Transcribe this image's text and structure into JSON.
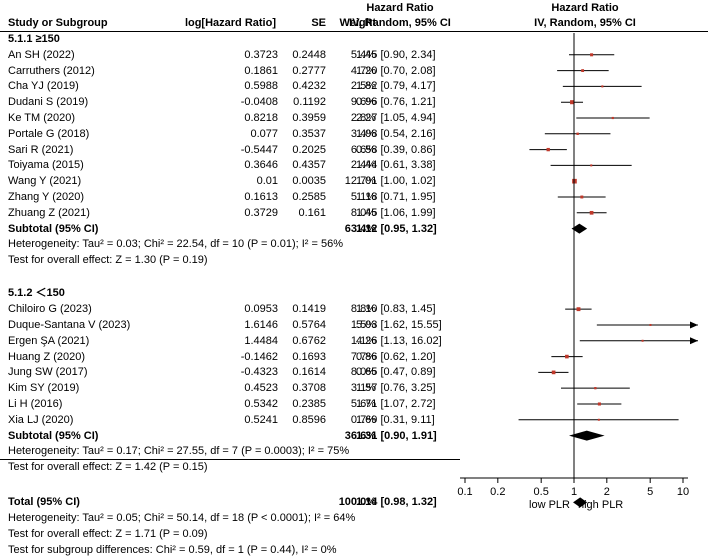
{
  "headers": {
    "study": "Study or Subgroup",
    "log_hr": "log[Hazard Ratio]",
    "se": "SE",
    "weight": "Weight",
    "hr_top": "Hazard Ratio",
    "hr_method": "IV, Random, 95% CI",
    "plot_top": "Hazard Ratio",
    "plot_method": "IV, Random, 95% CI"
  },
  "chart_data": {
    "type": "forest",
    "x_scale": "log",
    "xlim": [
      0.1,
      10
    ],
    "x_ticks": [
      "0.1",
      "0.2",
      "0.5",
      "1",
      "2",
      "5",
      "10"
    ],
    "x_tick_values": [
      0.1,
      0.2,
      0.5,
      1,
      2,
      5,
      10
    ],
    "favours_left": "low PLR",
    "favours_right": "high PLR",
    "subgroups": [
      {
        "title": "5.1.1 ≥150",
        "studies": [
          {
            "name": "An SH (2022)",
            "log_hr": "0.3723",
            "se": "0.2448",
            "weight": "5.4%",
            "ci_text": "1.45 [0.90, 2.34]",
            "hr": 1.45,
            "lo": 0.9,
            "hi": 2.34,
            "w": 5.4
          },
          {
            "name": "Carruthers (2012)",
            "log_hr": "0.1861",
            "se": "0.2777",
            "weight": "4.7%",
            "ci_text": "1.20 [0.70, 2.08]",
            "hr": 1.2,
            "lo": 0.7,
            "hi": 2.08,
            "w": 4.7
          },
          {
            "name": "Cha YJ (2019)",
            "log_hr": "0.5988",
            "se": "0.4232",
            "weight": "2.5%",
            "ci_text": "1.82 [0.79, 4.17]",
            "hr": 1.82,
            "lo": 0.79,
            "hi": 4.17,
            "w": 2.5
          },
          {
            "name": "Dudani S (2019)",
            "log_hr": "-0.0408",
            "se": "0.1192",
            "weight": "9.6%",
            "ci_text": "0.96 [0.76, 1.21]",
            "hr": 0.96,
            "lo": 0.76,
            "hi": 1.21,
            "w": 9.6
          },
          {
            "name": "Ke TM (2020)",
            "log_hr": "0.8218",
            "se": "0.3959",
            "weight": "2.8%",
            "ci_text": "2.27 [1.05, 4.94]",
            "hr": 2.27,
            "lo": 1.05,
            "hi": 4.94,
            "w": 2.8
          },
          {
            "name": "Portale G (2018)",
            "log_hr": "0.077",
            "se": "0.3537",
            "weight": "3.4%",
            "ci_text": "1.08 [0.54, 2.16]",
            "hr": 1.08,
            "lo": 0.54,
            "hi": 2.16,
            "w": 3.4
          },
          {
            "name": "Sari R (2021)",
            "log_hr": "-0.5447",
            "se": "0.2025",
            "weight": "6.6%",
            "ci_text": "0.58 [0.39, 0.86]",
            "hr": 0.58,
            "lo": 0.39,
            "hi": 0.86,
            "w": 6.6
          },
          {
            "name": "Toiyama (2015)",
            "log_hr": "0.3646",
            "se": "0.4357",
            "weight": "2.4%",
            "ci_text": "1.44 [0.61, 3.38]",
            "hr": 1.44,
            "lo": 0.61,
            "hi": 3.38,
            "w": 2.4
          },
          {
            "name": "Wang Y (2021)",
            "log_hr": "0.01",
            "se": "0.0035",
            "weight": "12.7%",
            "ci_text": "1.01 [1.00, 1.02]",
            "hr": 1.01,
            "lo": 1.0,
            "hi": 1.02,
            "w": 12.7
          },
          {
            "name": "Zhang Y (2020)",
            "log_hr": "0.1613",
            "se": "0.2585",
            "weight": "5.1%",
            "ci_text": "1.18 [0.71, 1.95]",
            "hr": 1.18,
            "lo": 0.71,
            "hi": 1.95,
            "w": 5.1
          },
          {
            "name": "Zhuang Z (2021)",
            "log_hr": "0.3729",
            "se": "0.161",
            "weight": "8.0%",
            "ci_text": "1.45 [1.06, 1.99]",
            "hr": 1.45,
            "lo": 1.06,
            "hi": 1.99,
            "w": 8.0
          }
        ],
        "subtotal": {
          "label": "Subtotal (95% CI)",
          "weight": "63.4%",
          "ci_text": "1.12 [0.95, 1.32]",
          "hr": 1.12,
          "lo": 0.95,
          "hi": 1.32
        },
        "heterogeneity": "Heterogeneity: Tau² = 0.03; Chi² = 22.54, df = 10 (P = 0.01); I² = 56%",
        "overall_effect": "Test for overall effect: Z = 1.30 (P = 0.19)"
      },
      {
        "title": "5.1.2 ＜150",
        "studies": [
          {
            "name": "Chiloiro G (2023)",
            "log_hr": "0.0953",
            "se": "0.1419",
            "weight": "8.8%",
            "ci_text": "1.10 [0.83, 1.45]",
            "hr": 1.1,
            "lo": 0.83,
            "hi": 1.45,
            "w": 8.8
          },
          {
            "name": "Duque-Santana V (2023)",
            "log_hr": "1.6146",
            "se": "0.5764",
            "weight": "1.5%",
            "ci_text": "5.03 [1.62, 15.55]",
            "hr": 5.03,
            "lo": 1.62,
            "hi": 15.55,
            "w": 1.5
          },
          {
            "name": "Ergen ŞA (2021)",
            "log_hr": "1.4484",
            "se": "0.6762",
            "weight": "1.1%",
            "ci_text": "4.26 [1.13, 16.02]",
            "hr": 4.26,
            "lo": 1.13,
            "hi": 16.02,
            "w": 1.1
          },
          {
            "name": "Huang Z (2020)",
            "log_hr": "-0.1462",
            "se": "0.1693",
            "weight": "7.7%",
            "ci_text": "0.86 [0.62, 1.20]",
            "hr": 0.86,
            "lo": 0.62,
            "hi": 1.2,
            "w": 7.7
          },
          {
            "name": "Jung SW (2017)",
            "log_hr": "-0.4323",
            "se": "0.1614",
            "weight": "8.0%",
            "ci_text": "0.65 [0.47, 0.89]",
            "hr": 0.65,
            "lo": 0.47,
            "hi": 0.89,
            "w": 8.0
          },
          {
            "name": "Kim SY (2019)",
            "log_hr": "0.4523",
            "se": "0.3708",
            "weight": "3.1%",
            "ci_text": "1.57 [0.76, 3.25]",
            "hr": 1.57,
            "lo": 0.76,
            "hi": 3.25,
            "w": 3.1
          },
          {
            "name": "Li H (2016)",
            "log_hr": "0.5342",
            "se": "0.2385",
            "weight": "5.6%",
            "ci_text": "1.71 [1.07, 2.72]",
            "hr": 1.71,
            "lo": 1.07,
            "hi": 2.72,
            "w": 5.6
          },
          {
            "name": "Xia LJ (2020)",
            "log_hr": "0.5241",
            "se": "0.8596",
            "weight": "0.7%",
            "ci_text": "1.69 [0.31, 9.11]",
            "hr": 1.69,
            "lo": 0.31,
            "hi": 9.11,
            "w": 0.7
          }
        ],
        "subtotal": {
          "label": "Subtotal (95% CI)",
          "weight": "36.6%",
          "ci_text": "1.31 [0.90, 1.91]",
          "hr": 1.31,
          "lo": 0.9,
          "hi": 1.91
        },
        "heterogeneity": "Heterogeneity: Tau² = 0.17; Chi² = 27.55, df = 7 (P = 0.0003); I² = 75%",
        "overall_effect": "Test for overall effect: Z = 1.42 (P = 0.15)"
      }
    ],
    "total": {
      "label": "Total (95% CI)",
      "weight": "100.0%",
      "ci_text": "1.14 [0.98, 1.32]",
      "hr": 1.14,
      "lo": 0.98,
      "hi": 1.32
    },
    "total_heterogeneity": "Heterogeneity: Tau² = 0.05; Chi² = 50.14, df = 18 (P < 0.0001); I² = 64%",
    "total_overall_effect": "Test for overall effect: Z = 1.71 (P = 0.09)",
    "subgroup_differences": "Test for subgroup differences: Chi² = 0.59, df = 1 (P = 0.44), I² = 0%",
    "colors": {
      "marker": "#c0392b",
      "diamond": "#000000",
      "line": "#000000"
    }
  }
}
